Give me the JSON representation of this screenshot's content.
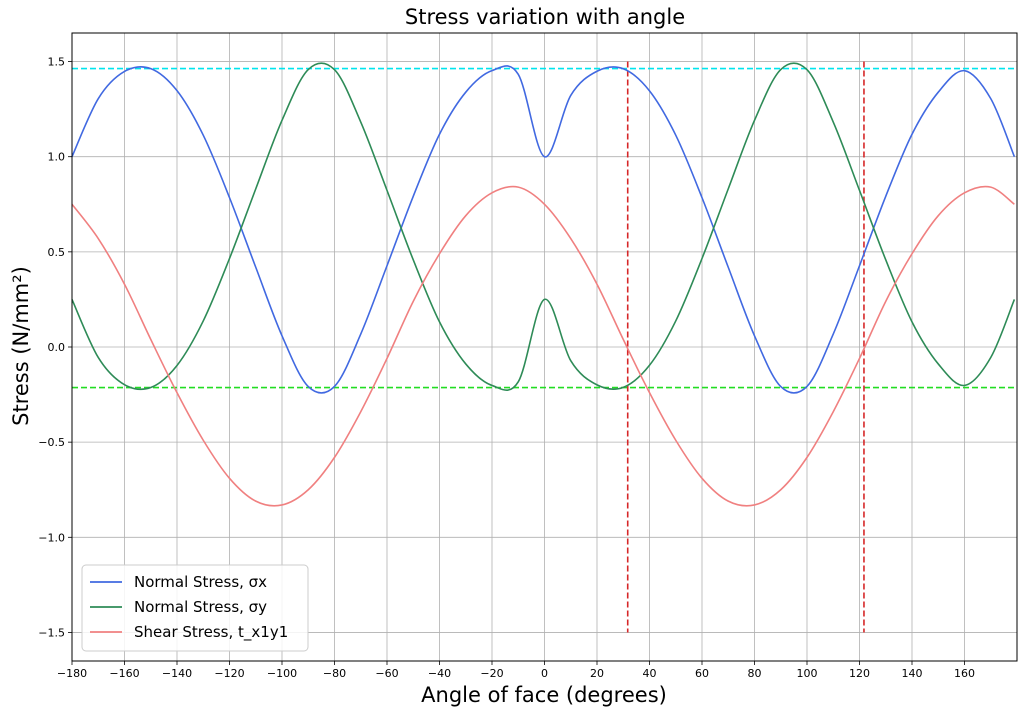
{
  "chart_data": {
    "type": "line",
    "title": "Stress variation with angle",
    "xlabel": "Angle of face (degrees)",
    "ylabel": "Stress (N/mm²)",
    "xlim": [
      -180,
      180
    ],
    "ylim": [
      -1.65,
      1.65
    ],
    "xticks": [
      -180,
      -160,
      -140,
      -120,
      -100,
      -80,
      -60,
      -40,
      -20,
      0,
      20,
      40,
      60,
      80,
      100,
      120,
      140,
      160
    ],
    "xtick_labels": [
      "−180",
      "−160",
      "−140",
      "−120",
      "−100",
      "−80",
      "−60",
      "−40",
      "−20",
      "0",
      "20",
      "40",
      "60",
      "80",
      "100",
      "120",
      "140",
      "160"
    ],
    "yticks": [
      -1.5,
      -1.0,
      -0.5,
      0.0,
      0.5,
      1.0,
      1.5
    ],
    "ytick_labels": [
      "−1.5",
      "−1.0",
      "−0.5",
      "0.0",
      "0.5",
      "1.0",
      "1.5"
    ],
    "grid": true,
    "legend_position": "lower-left",
    "x": [
      -180,
      -170,
      -160,
      -150,
      -140,
      -130,
      -120,
      -110,
      -100,
      -90,
      -80,
      -70,
      -60,
      -50,
      -40,
      -30,
      -20,
      -10,
      0,
      10,
      20,
      30,
      40,
      50,
      60,
      70,
      80,
      90,
      100,
      110,
      120,
      130,
      140,
      150,
      160,
      170,
      179
    ],
    "series": [
      {
        "name": "Normal Stress, σx",
        "color": "#4169e1",
        "values": [
          1.0,
          1.305,
          1.448,
          1.463,
          1.347,
          1.113,
          0.785,
          0.419,
          0.059,
          -0.208,
          -0.207,
          0.068,
          0.427,
          0.792,
          1.118,
          1.339,
          1.452,
          1.433,
          1.0,
          1.322,
          1.449,
          1.462,
          1.346,
          1.113,
          0.785,
          0.419,
          0.059,
          -0.208,
          -0.207,
          0.068,
          0.427,
          0.792,
          1.118,
          1.339,
          1.452,
          1.305,
          1.0
        ]
      },
      {
        "name": "Normal Stress, σy",
        "color": "#2e8b57",
        "values": [
          0.25,
          -0.055,
          -0.198,
          -0.213,
          -0.097,
          0.137,
          0.465,
          0.831,
          1.191,
          1.458,
          1.457,
          1.182,
          0.823,
          0.458,
          0.132,
          -0.089,
          -0.202,
          -0.183,
          0.25,
          -0.072,
          -0.199,
          -0.212,
          -0.096,
          0.137,
          0.465,
          0.831,
          1.191,
          1.458,
          1.457,
          1.182,
          0.823,
          0.458,
          0.132,
          -0.089,
          -0.202,
          -0.055,
          0.25
        ]
      },
      {
        "name": "Shear Stress, t_x1y1",
        "color": "#f08080",
        "values": [
          0.75,
          0.57,
          0.33,
          0.04,
          -0.24,
          -0.49,
          -0.69,
          -0.81,
          -0.83,
          -0.75,
          -0.58,
          -0.34,
          -0.06,
          0.24,
          0.49,
          0.69,
          0.81,
          0.84,
          0.75,
          0.57,
          0.33,
          0.04,
          -0.24,
          -0.49,
          -0.69,
          -0.81,
          -0.83,
          -0.75,
          -0.58,
          -0.34,
          -0.06,
          0.24,
          0.49,
          0.69,
          0.81,
          0.84,
          0.75
        ]
      }
    ],
    "reference_lines": [
      {
        "orientation": "horizontal",
        "value": 1.463,
        "color": "#00e5ee",
        "style": "dashed"
      },
      {
        "orientation": "horizontal",
        "value": -0.213,
        "color": "#22dd22",
        "style": "dashed"
      },
      {
        "orientation": "vertical",
        "value": 31.7,
        "range": [
          -1.5,
          1.5
        ],
        "color": "#d62728",
        "style": "dashed"
      },
      {
        "orientation": "vertical",
        "value": 121.7,
        "range": [
          -1.5,
          1.5
        ],
        "color": "#d62728",
        "style": "dashed"
      }
    ]
  }
}
